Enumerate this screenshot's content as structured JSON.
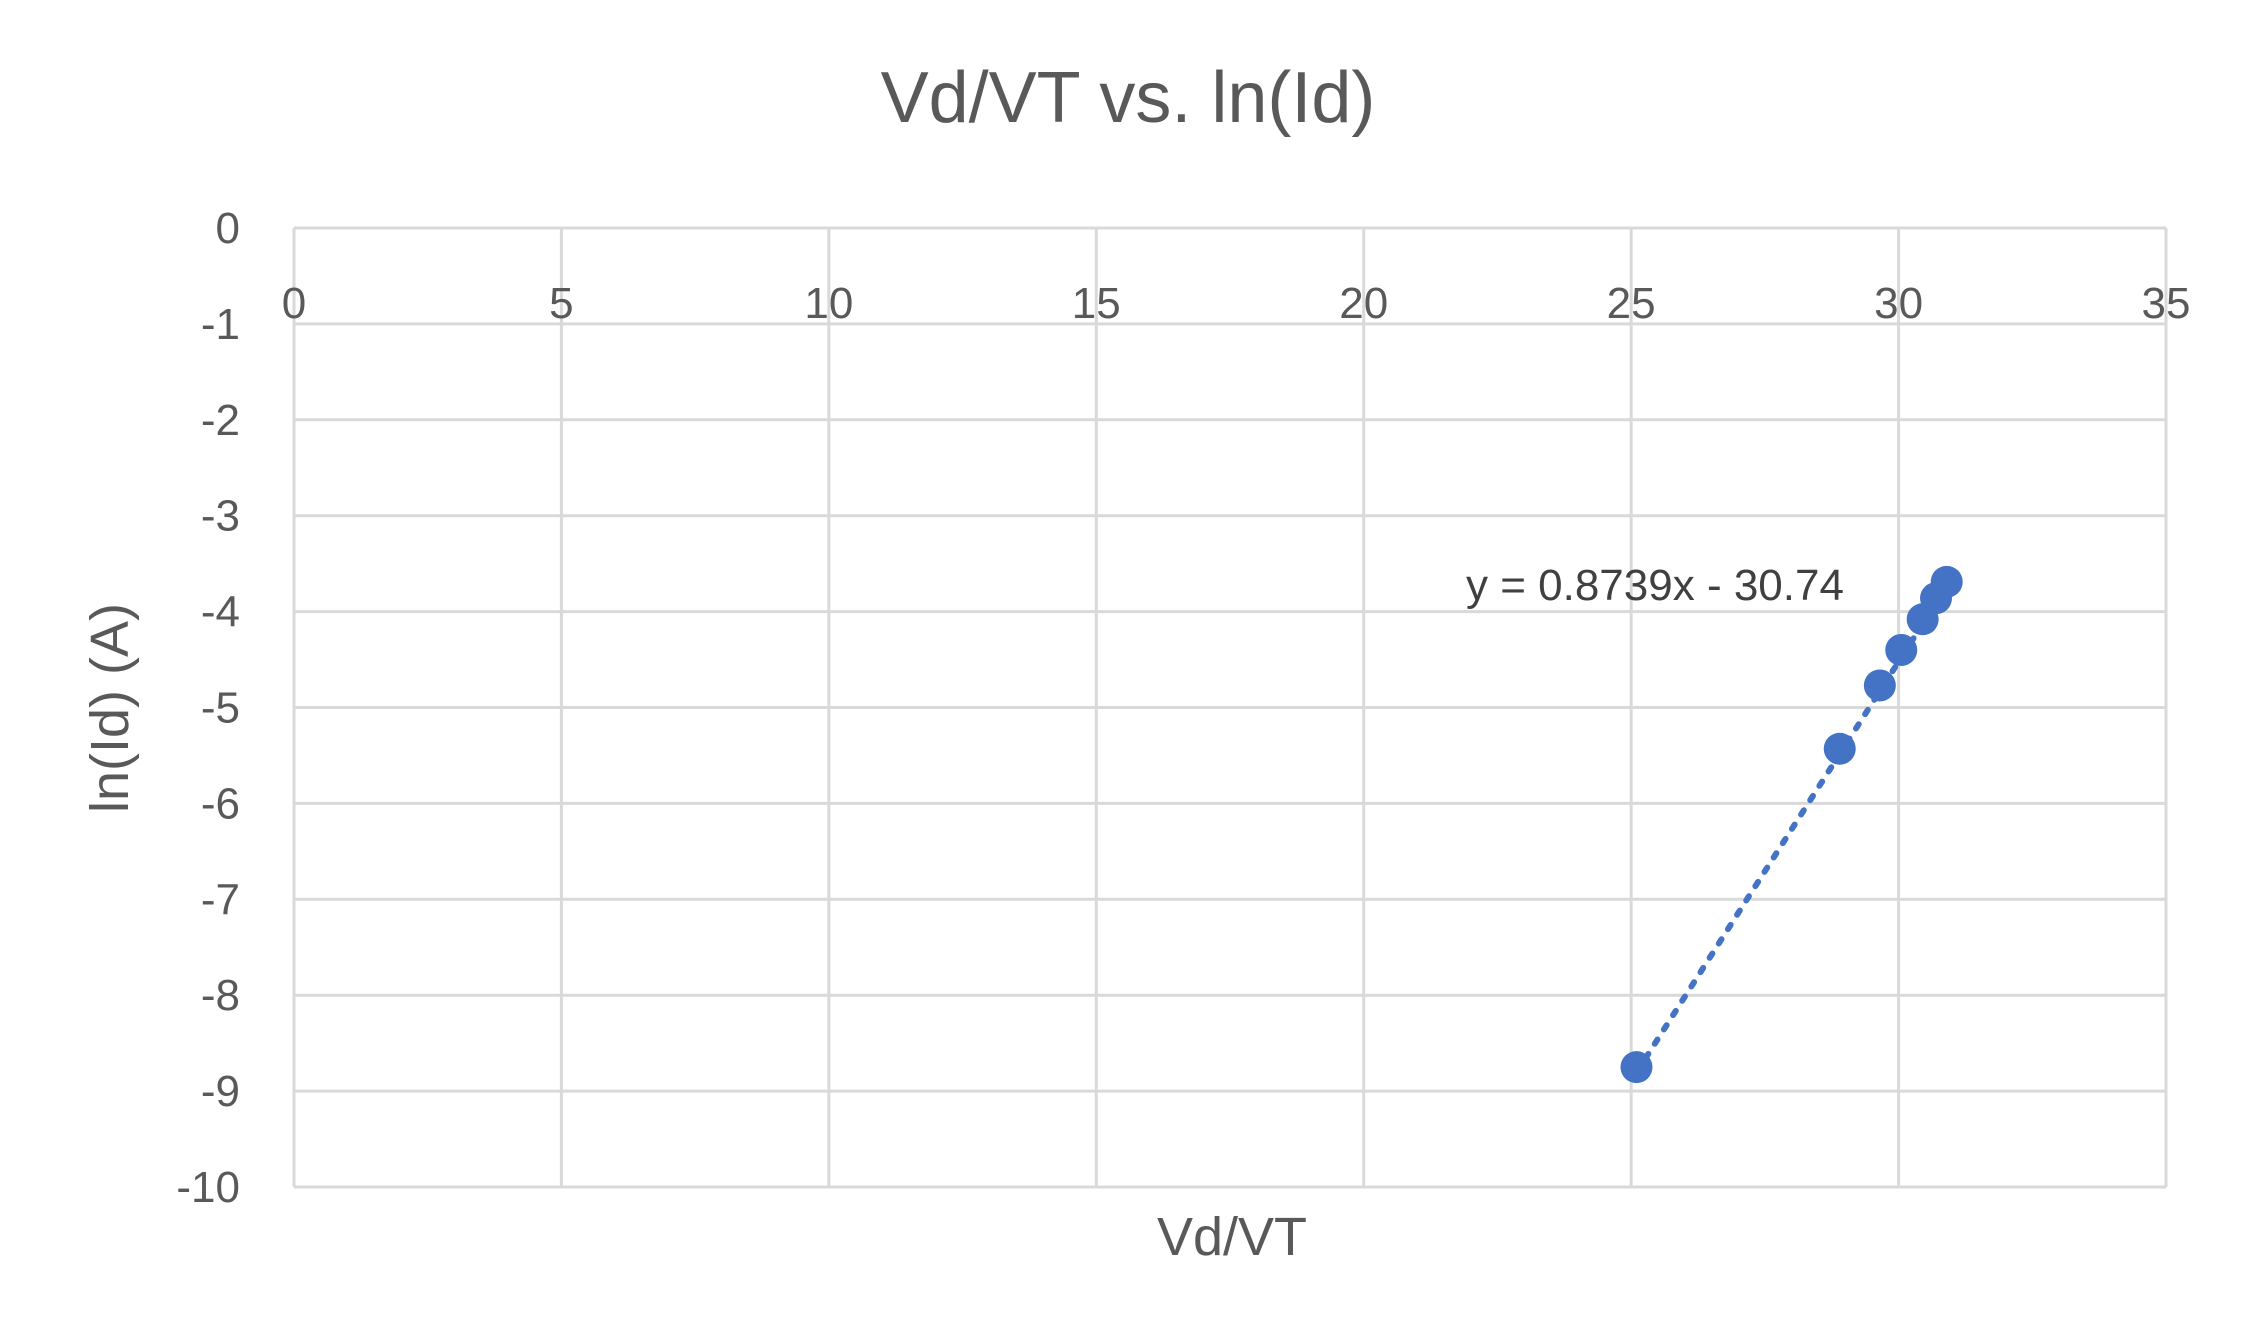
{
  "chart_data": {
    "type": "scatter",
    "title": "Vd/VT vs. ln(Id)",
    "xlabel": "Vd/VT",
    "ylabel": "ln(Id) (A)",
    "xlim": [
      0,
      35
    ],
    "ylim": [
      -10,
      0
    ],
    "x_ticks": [
      "0",
      "5",
      "10",
      "15",
      "20",
      "25",
      "30",
      "35"
    ],
    "y_ticks": [
      "0",
      "-1",
      "-2",
      "-3",
      "-4",
      "-5",
      "-6",
      "-7",
      "-8",
      "-9",
      "-10"
    ],
    "grid": true,
    "legend": "none",
    "series": [
      {
        "x": [
          25.1,
          28.9,
          29.65,
          30.05,
          30.45,
          30.7,
          30.9
        ],
        "y": [
          -8.75,
          -5.43,
          -4.77,
          -4.4,
          -4.08,
          -3.86,
          -3.69
        ],
        "color": "#4472C4",
        "marker": "circle"
      }
    ],
    "trendline": {
      "type": "linear",
      "slope": 0.8739,
      "intercept": -30.74,
      "x_range": [
        25.1,
        30.9
      ],
      "style": "dotted",
      "color": "#4472C4",
      "label": "y = 0.8739x - 30.74"
    }
  },
  "colors": {
    "grid": "#D9D9D9",
    "text": "#595959",
    "series": "#4472C4"
  }
}
